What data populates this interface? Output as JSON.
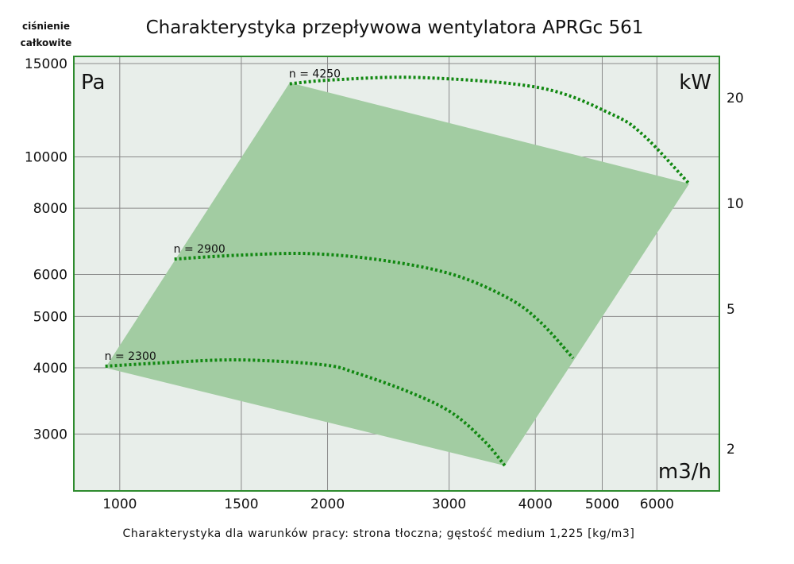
{
  "chart_data": {
    "type": "line",
    "title": "Charakterystyka przepływowa wentylatora APRGc 561",
    "ylabel_lines": [
      "ciśnienie",
      "całkowite"
    ],
    "y_unit": "Pa",
    "y2_unit": "kW",
    "x_unit": "m3/h",
    "footnote": "Charakterystyka dla warunków pracy: strona tłoczna; gęstość medium 1,225 [kg/m3]",
    "x_scale": "log",
    "y_scale": "log",
    "xlim": [
      858,
      7390
    ],
    "ylim": [
      2343,
      15470
    ],
    "x_ticks": [
      1000,
      1500,
      2000,
      3000,
      4000,
      5000,
      6000
    ],
    "x_tick_labels": [
      "1000",
      "1500",
      "2000",
      "3000",
      "4000",
      "5000",
      "6000"
    ],
    "y_ticks": [
      15000,
      10000,
      8000,
      6000,
      5000,
      4000,
      3000
    ],
    "y_tick_labels": [
      "15000",
      "10000",
      "8000",
      "6000",
      "5000",
      "4000",
      "3000"
    ],
    "y2_ticks": [
      20,
      10,
      5,
      2
    ],
    "y2_tick_labels": [
      "20",
      "10",
      "5",
      "2"
    ],
    "grid": true,
    "operating_region": [
      [
        953,
        4000
      ],
      [
        1763,
        13800
      ],
      [
        6683,
        8900
      ],
      [
        3614,
        2614
      ]
    ],
    "series": [
      {
        "name": "n = 4250",
        "x": [
          1763,
          2038,
          2727,
          4063,
          5154,
          5740,
          6683
        ],
        "y": [
          13733,
          13970,
          14111,
          13497,
          12044,
          10977,
          8895
        ]
      },
      {
        "name": "n = 2900",
        "x": [
          1200,
          1484,
          1884,
          2393,
          3032,
          3654,
          4063,
          4537
        ],
        "y": [
          6414,
          6523,
          6568,
          6386,
          6003,
          5413,
          4885,
          4170
        ]
      },
      {
        "name": "n = 2300",
        "x": [
          953,
          1138,
          1484,
          1963,
          2208,
          2654,
          3032,
          3372,
          3614
        ],
        "y": [
          4027,
          4083,
          4140,
          4055,
          3905,
          3580,
          3285,
          2912,
          2614
        ]
      }
    ],
    "colors": {
      "plot_bg": "#e8eeea",
      "region": "#a2cca2",
      "curve": "#118811",
      "frame": "#2e8b2e",
      "grid": "#8a8a8a"
    }
  }
}
